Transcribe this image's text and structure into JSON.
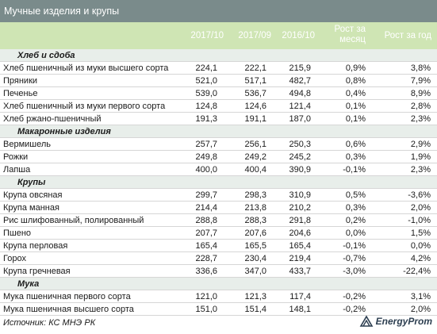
{
  "title": "Мучные изделия и крупы",
  "columns": [
    "2017/10",
    "2017/09",
    "2016/10",
    "Рост за месяц",
    "Рост за год"
  ],
  "sections": [
    {
      "name": "Хлеб и сдоба",
      "rows": [
        {
          "name": "Хлеб пшеничный из муки высшего сорта",
          "v1": "224,1",
          "v2": "222,1",
          "v3": "215,9",
          "v4": "0,9%",
          "v5": "3,8%"
        },
        {
          "name": "Пряники",
          "v1": "521,0",
          "v2": "517,1",
          "v3": "482,7",
          "v4": "0,8%",
          "v5": "7,9%"
        },
        {
          "name": "Печенье",
          "v1": "539,0",
          "v2": "536,7",
          "v3": "494,8",
          "v4": "0,4%",
          "v5": "8,9%"
        },
        {
          "name": "Хлеб пшеничный из муки первого сорта",
          "v1": "124,8",
          "v2": "124,6",
          "v3": "121,4",
          "v4": "0,1%",
          "v5": "2,8%"
        },
        {
          "name": "Хлеб ржано-пшеничный",
          "v1": "191,3",
          "v2": "191,1",
          "v3": "187,0",
          "v4": "0,1%",
          "v5": "2,3%"
        }
      ]
    },
    {
      "name": "Макаронные изделия",
      "rows": [
        {
          "name": "Вермишель",
          "v1": "257,7",
          "v2": "256,1",
          "v3": "250,3",
          "v4": "0,6%",
          "v5": "2,9%"
        },
        {
          "name": "Рожки",
          "v1": "249,8",
          "v2": "249,2",
          "v3": "245,2",
          "v4": "0,3%",
          "v5": "1,9%"
        },
        {
          "name": "Лапша",
          "v1": "400,0",
          "v2": "400,4",
          "v3": "390,9",
          "v4": "-0,1%",
          "v5": "2,3%"
        }
      ]
    },
    {
      "name": "Крупы",
      "rows": [
        {
          "name": "Крупа овсяная",
          "v1": "299,7",
          "v2": "298,3",
          "v3": "310,9",
          "v4": "0,5%",
          "v5": "-3,6%"
        },
        {
          "name": "Крупа манная",
          "v1": "214,4",
          "v2": "213,8",
          "v3": "210,2",
          "v4": "0,3%",
          "v5": "2,0%"
        },
        {
          "name": "Рис шлифованный, полированный",
          "v1": "288,8",
          "v2": "288,3",
          "v3": "291,8",
          "v4": "0,2%",
          "v5": "-1,0%"
        },
        {
          "name": "Пшено",
          "v1": "207,7",
          "v2": "207,6",
          "v3": "204,6",
          "v4": "0,0%",
          "v5": "1,5%"
        },
        {
          "name": "Крупа перловая",
          "v1": "165,4",
          "v2": "165,5",
          "v3": "165,4",
          "v4": "-0,1%",
          "v5": "0,0%"
        },
        {
          "name": "Горох",
          "v1": "228,7",
          "v2": "230,4",
          "v3": "219,4",
          "v4": "-0,7%",
          "v5": "4,2%"
        },
        {
          "name": "Крупа гречневая",
          "v1": "336,6",
          "v2": "347,0",
          "v3": "433,7",
          "v4": "-3,0%",
          "v5": "-22,4%"
        }
      ]
    },
    {
      "name": "Мука",
      "rows": [
        {
          "name": "Мука пшеничная первого сорта",
          "v1": "121,0",
          "v2": "121,3",
          "v3": "117,4",
          "v4": "-0,2%",
          "v5": "3,1%"
        },
        {
          "name": "Мука пшеничная высшего сорта",
          "v1": "151,0",
          "v2": "151,4",
          "v3": "148,1",
          "v4": "-0,2%",
          "v5": "2,0%"
        }
      ]
    }
  ],
  "source": "Источник: КС МНЭ РК",
  "logo_text": "EnergyProm",
  "colors": {
    "title_bg": "#7a8b8b",
    "header_bg": "#cfe5b4",
    "category_bg": "#e8eeea",
    "logo": "#2c3e50"
  }
}
